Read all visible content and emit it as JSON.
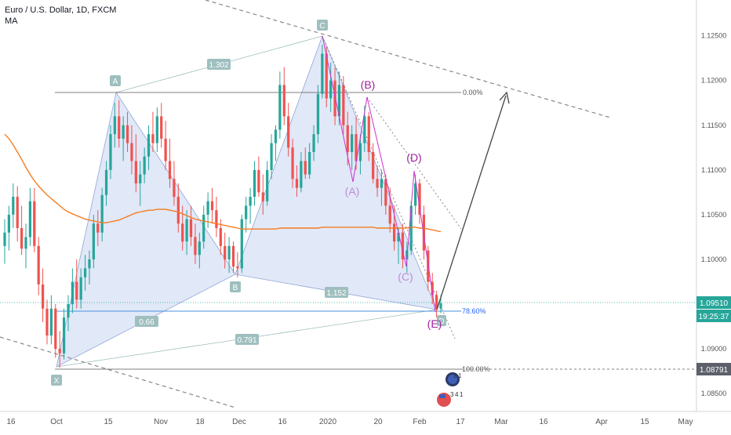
{
  "header": {
    "symbol_line": "Euro / U.S. Dollar, 1D, FXCM",
    "indicator": "MA"
  },
  "price_axis": {
    "ticks": [
      "1.12500",
      "1.12000",
      "1.11500",
      "1.11000",
      "1.10500",
      "1.10000",
      "1.09500",
      "1.09000",
      "1.08500"
    ],
    "current_price_label": "1.09510",
    "countdown_label": "19:25:37",
    "level_label": "1.08791"
  },
  "time_axis": {
    "ticks": [
      "16",
      "Oct",
      "15",
      "Nov",
      "18",
      "Dec",
      "16",
      "2020",
      "20",
      "Feb",
      "17",
      "Mar",
      "16",
      "Apr",
      "15",
      "May"
    ]
  },
  "pattern": {
    "points": [
      "X",
      "A",
      "B",
      "C",
      "D"
    ],
    "ratios": [
      "1.302",
      "0.66",
      "1.152",
      "0.791"
    ],
    "fib_levels": [
      "0.00%",
      "78.60%",
      "100.00%"
    ],
    "waves": [
      "(A)",
      "(B)",
      "(C)",
      "(D)",
      "(E)"
    ]
  },
  "badges": [
    "2",
    "3",
    "4",
    "1"
  ],
  "colors": {
    "up": "#26a69a",
    "down": "#ef5350",
    "ma": "#f57c1f",
    "pattern_fill": "#c9d6f2",
    "pattern_line": "#8fa6d6",
    "wave": "#cc33cc",
    "label_bg": "#9fbfbf",
    "current_price": "#26a69a",
    "level_price": "#5d606b",
    "fib_blue": "#2962ff"
  },
  "chart_data": {
    "type": "candlestick",
    "ylim": [
      1.083,
      1.129
    ],
    "yticks": [
      1.125,
      1.12,
      1.115,
      1.11,
      1.105,
      1.1,
      1.095,
      1.09,
      1.085
    ],
    "current_price": 1.0951,
    "level_price": 1.08791,
    "candles": [
      [
        1.1015,
        1.1045,
        1.0995,
        1.103
      ],
      [
        1.103,
        1.106,
        1.101,
        1.105
      ],
      [
        1.105,
        1.1085,
        1.1035,
        1.107
      ],
      [
        1.107,
        1.1082,
        1.102,
        1.1035
      ],
      [
        1.1035,
        1.106,
        1.1005,
        1.1012
      ],
      [
        1.1012,
        1.104,
        1.099,
        1.1025
      ],
      [
        1.1025,
        1.108,
        1.1015,
        1.1065
      ],
      [
        1.1065,
        1.108,
        1.1008,
        1.1015
      ],
      [
        1.1015,
        1.1025,
        1.096,
        1.0972
      ],
      [
        1.0972,
        1.099,
        1.093,
        1.0945
      ],
      [
        1.0945,
        1.0955,
        1.0905,
        1.0915
      ],
      [
        1.0915,
        1.096,
        1.0905,
        1.0945
      ],
      [
        1.0945,
        1.095,
        1.089,
        1.09
      ],
      [
        1.09,
        1.092,
        1.0879,
        1.0895
      ],
      [
        1.0895,
        1.0945,
        1.0888,
        1.0935
      ],
      [
        1.0935,
        1.096,
        1.092,
        1.095
      ],
      [
        1.095,
        1.099,
        1.094,
        1.0975
      ],
      [
        1.0975,
        1.1,
        1.0945,
        1.0955
      ],
      [
        1.0955,
        1.099,
        1.0945,
        1.098
      ],
      [
        1.098,
        1.1005,
        1.0965,
        1.099
      ],
      [
        1.099,
        1.101,
        1.0972,
        1.1
      ],
      [
        1.1,
        1.105,
        1.099,
        1.104
      ],
      [
        1.104,
        1.1055,
        1.1015,
        1.103
      ],
      [
        1.103,
        1.108,
        1.102,
        1.1072
      ],
      [
        1.1072,
        1.111,
        1.106,
        1.11
      ],
      [
        1.11,
        1.115,
        1.109,
        1.114
      ],
      [
        1.114,
        1.1175,
        1.1125,
        1.116
      ],
      [
        1.116,
        1.1178,
        1.1125,
        1.1135
      ],
      [
        1.1135,
        1.116,
        1.111,
        1.115
      ],
      [
        1.115,
        1.1165,
        1.112,
        1.113
      ],
      [
        1.113,
        1.115,
        1.1095,
        1.111
      ],
      [
        1.111,
        1.114,
        1.1075,
        1.1085
      ],
      [
        1.1085,
        1.111,
        1.106,
        1.1095
      ],
      [
        1.1095,
        1.1125,
        1.1085,
        1.1115
      ],
      [
        1.1115,
        1.115,
        1.11,
        1.114
      ],
      [
        1.114,
        1.1165,
        1.112,
        1.113
      ],
      [
        1.113,
        1.117,
        1.112,
        1.116
      ],
      [
        1.116,
        1.1175,
        1.1125,
        1.1135
      ],
      [
        1.1135,
        1.1155,
        1.11,
        1.111
      ],
      [
        1.111,
        1.1135,
        1.108,
        1.109
      ],
      [
        1.109,
        1.111,
        1.106,
        1.107
      ],
      [
        1.107,
        1.1085,
        1.103,
        1.104
      ],
      [
        1.104,
        1.106,
        1.101,
        1.102
      ],
      [
        1.102,
        1.1055,
        1.1005,
        1.1045
      ],
      [
        1.1045,
        1.106,
        1.1015,
        1.1025
      ],
      [
        1.1025,
        1.104,
        1.0995,
        1.1005
      ],
      [
        1.1005,
        1.103,
        1.099,
        1.102
      ],
      [
        1.102,
        1.106,
        1.1012,
        1.105
      ],
      [
        1.105,
        1.1075,
        1.1035,
        1.1065
      ],
      [
        1.1065,
        1.108,
        1.104,
        1.1055
      ],
      [
        1.1055,
        1.107,
        1.1025,
        1.1035
      ],
      [
        1.1035,
        1.1045,
        1.1005,
        1.1015
      ],
      [
        1.1015,
        1.103,
        1.099,
        1.1
      ],
      [
        1.1,
        1.1025,
        1.0985,
        1.1015
      ],
      [
        1.1015,
        1.102,
        1.0985,
        1.0992
      ],
      [
        1.0992,
        1.1008,
        1.098,
        1.099
      ],
      [
        1.099,
        1.105,
        1.0985,
        1.1045
      ],
      [
        1.1045,
        1.107,
        1.103,
        1.106
      ],
      [
        1.106,
        1.108,
        1.104,
        1.107
      ],
      [
        1.107,
        1.111,
        1.106,
        1.11
      ],
      [
        1.11,
        1.1115,
        1.107,
        1.1075
      ],
      [
        1.1075,
        1.1095,
        1.105,
        1.1065
      ],
      [
        1.1065,
        1.111,
        1.106,
        1.11
      ],
      [
        1.11,
        1.114,
        1.109,
        1.113
      ],
      [
        1.113,
        1.115,
        1.111,
        1.1145
      ],
      [
        1.1145,
        1.121,
        1.1135,
        1.1195
      ],
      [
        1.1195,
        1.1215,
        1.115,
        1.116
      ],
      [
        1.116,
        1.1175,
        1.1115,
        1.1125
      ],
      [
        1.1125,
        1.1135,
        1.108,
        1.109
      ],
      [
        1.109,
        1.1105,
        1.107,
        1.108
      ],
      [
        1.108,
        1.112,
        1.1075,
        1.111
      ],
      [
        1.111,
        1.1125,
        1.109,
        1.1095
      ],
      [
        1.1095,
        1.113,
        1.109,
        1.112
      ],
      [
        1.112,
        1.115,
        1.111,
        1.114
      ],
      [
        1.114,
        1.1195,
        1.113,
        1.1185
      ],
      [
        1.1185,
        1.124,
        1.118,
        1.123
      ],
      [
        1.123,
        1.1238,
        1.117,
        1.118
      ],
      [
        1.118,
        1.122,
        1.1165,
        1.12
      ],
      [
        1.12,
        1.1215,
        1.115,
        1.116
      ],
      [
        1.116,
        1.121,
        1.115,
        1.1195
      ],
      [
        1.1195,
        1.1205,
        1.114,
        1.115
      ],
      [
        1.115,
        1.1165,
        1.1105,
        1.112
      ],
      [
        1.112,
        1.115,
        1.11,
        1.114
      ],
      [
        1.114,
        1.116,
        1.11,
        1.111
      ],
      [
        1.111,
        1.114,
        1.1095,
        1.113
      ],
      [
        1.113,
        1.1172,
        1.112,
        1.116
      ],
      [
        1.116,
        1.1165,
        1.111,
        1.112
      ],
      [
        1.112,
        1.113,
        1.1085,
        1.109
      ],
      [
        1.109,
        1.1105,
        1.107,
        1.108
      ],
      [
        1.108,
        1.11,
        1.106,
        1.109
      ],
      [
        1.109,
        1.1095,
        1.105,
        1.106
      ],
      [
        1.106,
        1.108,
        1.103,
        1.104
      ],
      [
        1.104,
        1.106,
        1.101,
        1.102
      ],
      [
        1.102,
        1.1035,
        1.0995,
        1.103
      ],
      [
        1.103,
        1.104,
        1.099,
        1.1
      ],
      [
        1.1,
        1.102,
        1.0985,
        1.101
      ],
      [
        1.101,
        1.1065,
        1.1005,
        1.106
      ],
      [
        1.106,
        1.1095,
        1.105,
        1.1085
      ],
      [
        1.1085,
        1.109,
        1.104,
        1.105
      ],
      [
        1.105,
        1.106,
        1.1,
        1.101
      ],
      [
        1.101,
        1.1015,
        1.0965,
        1.0975
      ],
      [
        1.0975,
        1.0985,
        1.095,
        1.096
      ],
      [
        1.096,
        1.0965,
        1.0935,
        1.0945
      ],
      [
        1.0945,
        1.096,
        1.094,
        1.0951
      ]
    ],
    "ma": [
      1.114,
      1.1135,
      1.1128,
      1.112,
      1.1112,
      1.1103,
      1.1095,
      1.1088,
      1.1082,
      1.1077,
      1.1072,
      1.1068,
      1.1064,
      1.106,
      1.1056,
      1.1053,
      1.1051,
      1.1049,
      1.1047,
      1.1045,
      1.1044,
      1.1043,
      1.1042,
      1.1041,
      1.1041,
      1.1042,
      1.1043,
      1.1044,
      1.1046,
      1.1048,
      1.105,
      1.1052,
      1.1053,
      1.1054,
      1.1055,
      1.1055,
      1.1056,
      1.1056,
      1.1056,
      1.1055,
      1.1054,
      1.1053,
      1.1051,
      1.1049,
      1.1047,
      1.1045,
      1.1044,
      1.1043,
      1.1042,
      1.1041,
      1.104,
      1.1039,
      1.1038,
      1.1037,
      1.1036,
      1.1035,
      1.1034,
      1.1034,
      1.1034,
      1.1034,
      1.1034,
      1.1034,
      1.1034,
      1.1034,
      1.1034,
      1.1035,
      1.1035,
      1.1035,
      1.1035,
      1.1035,
      1.1035,
      1.1035,
      1.1035,
      1.1035,
      1.1035,
      1.1036,
      1.1036,
      1.1036,
      1.1036,
      1.1036,
      1.1036,
      1.1036,
      1.1036,
      1.1036,
      1.1036,
      1.1036,
      1.1036,
      1.1036,
      1.1035,
      1.1035,
      1.1035,
      1.1035,
      1.1035,
      1.1035,
      1.1035,
      1.1035,
      1.1036,
      1.1036,
      1.1035,
      1.1035,
      1.1034,
      1.1033,
      1.1032,
      1.1031
    ]
  }
}
